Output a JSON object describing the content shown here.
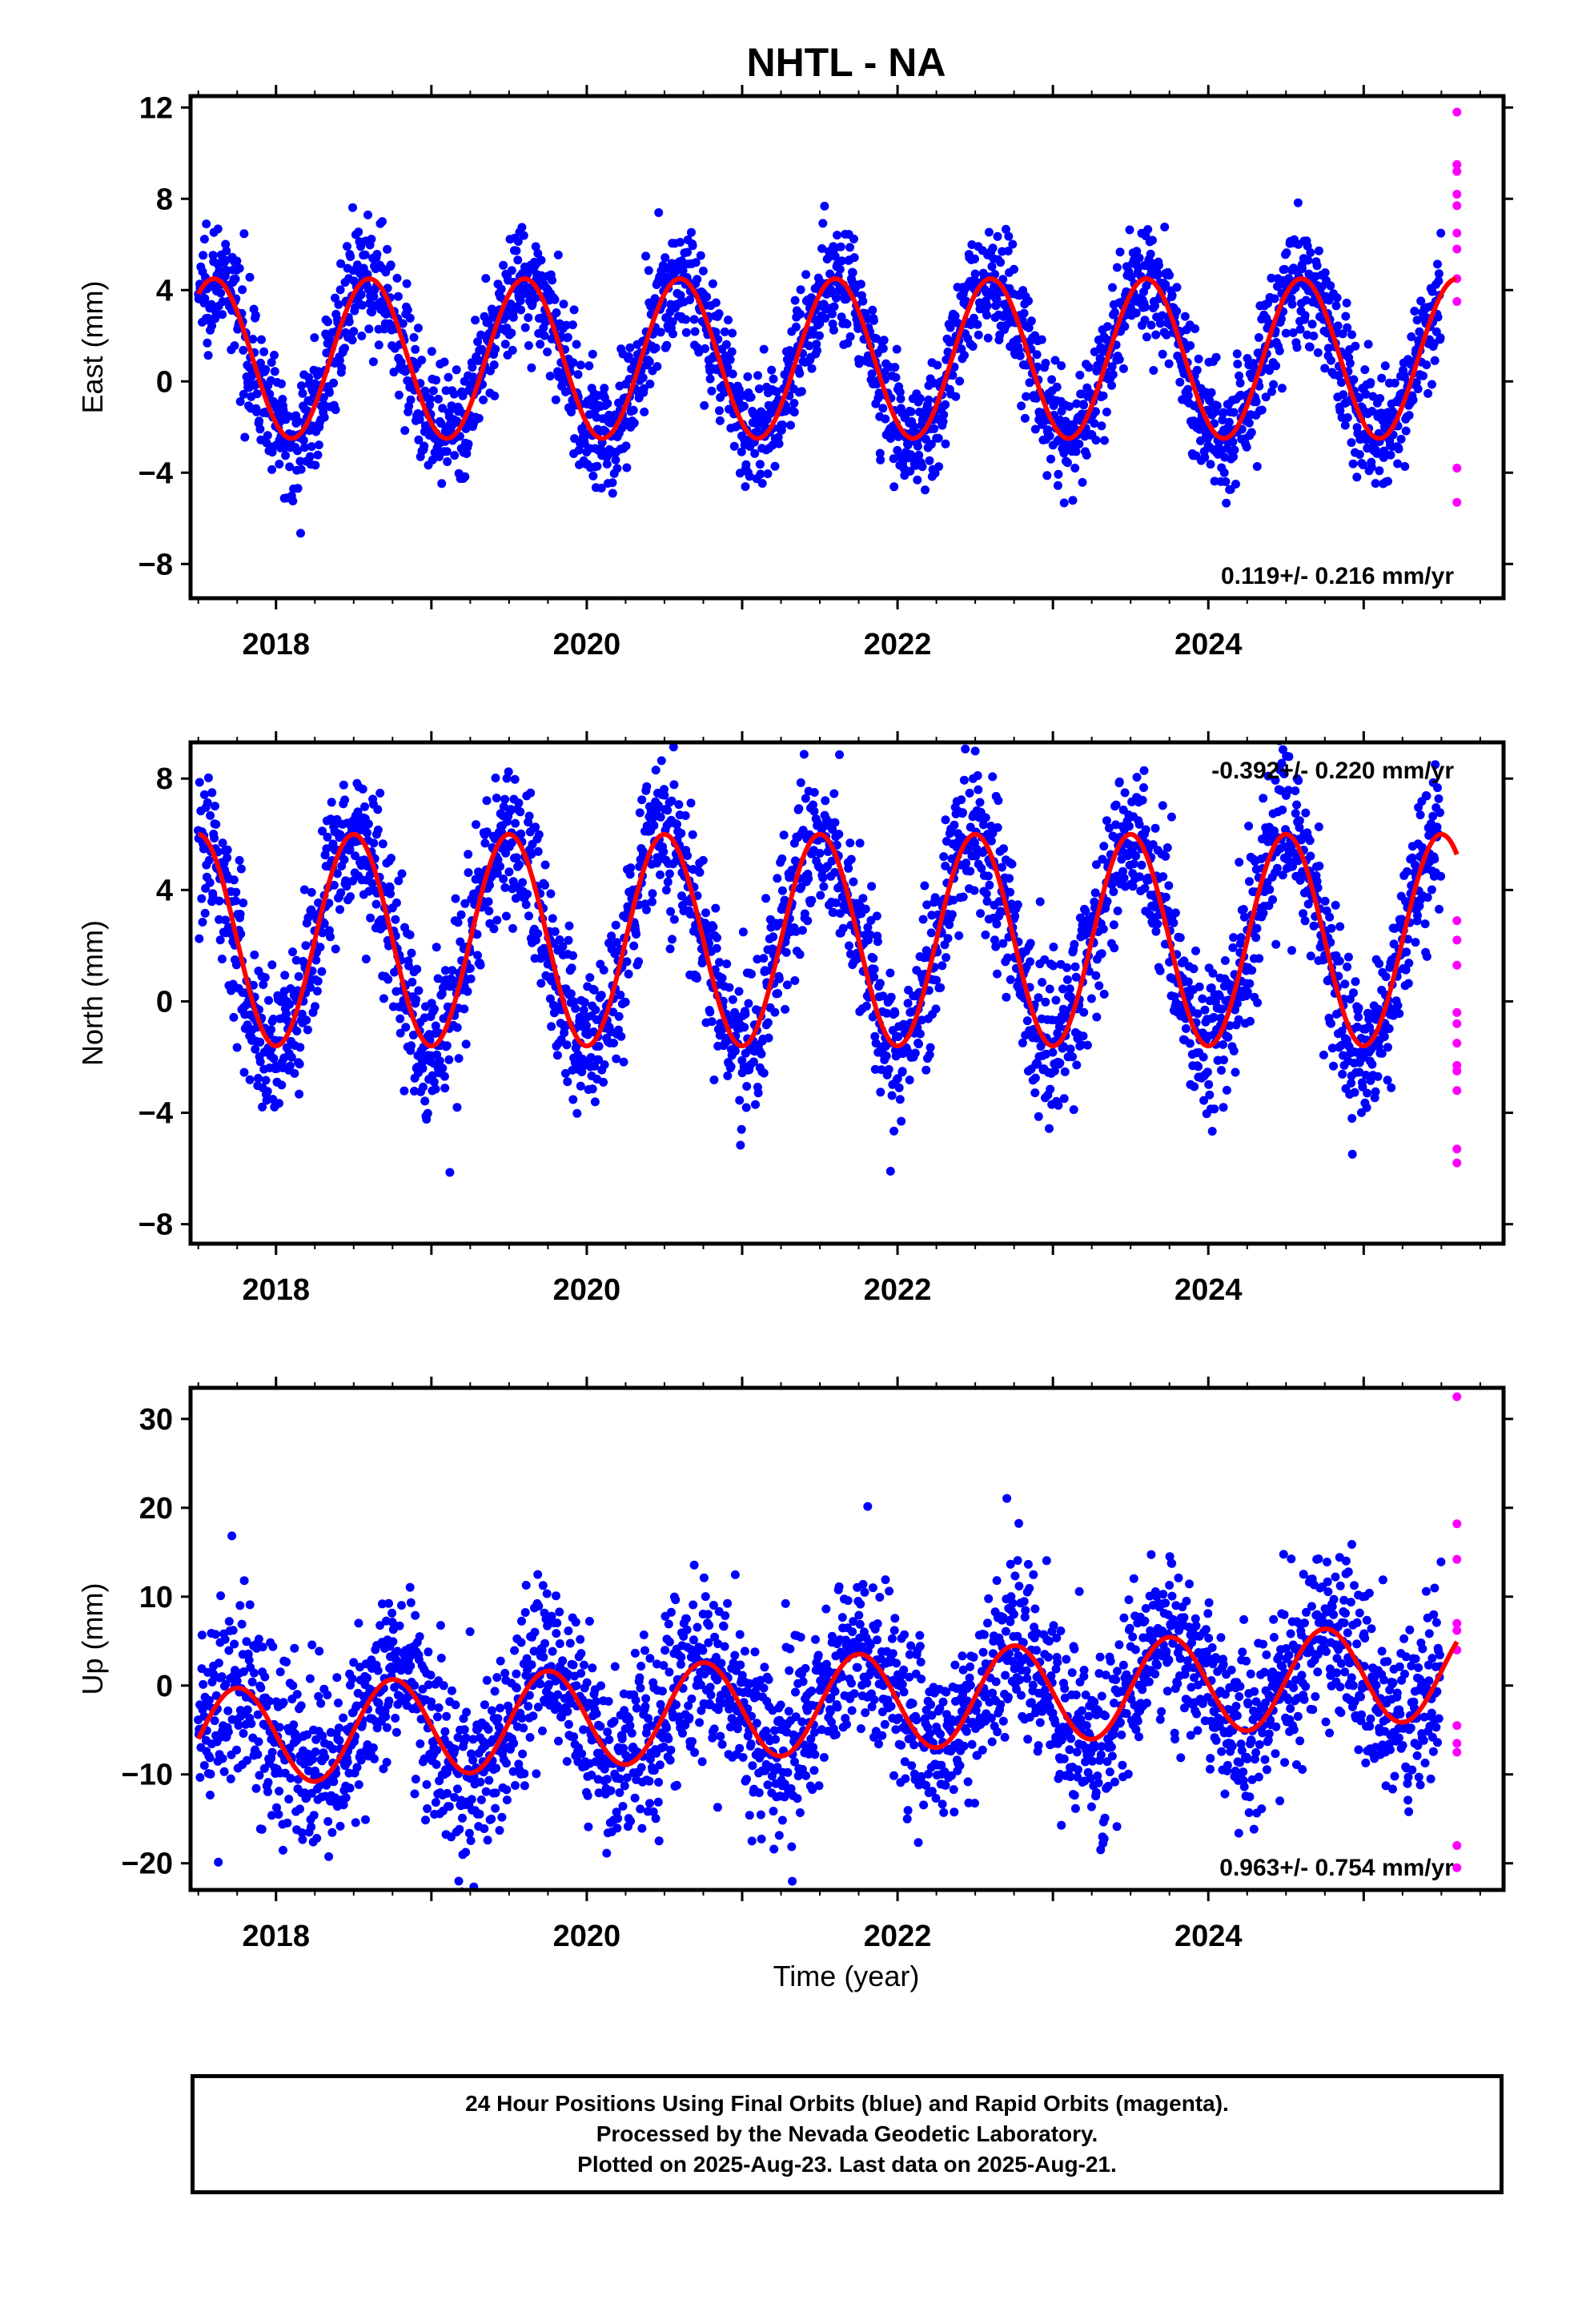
{
  "title": "NHTL - NA",
  "colors": {
    "final": "#0000ff",
    "rapid": "#ff00ff",
    "model": "#ff0000"
  },
  "xlabel": "Time (year)",
  "x_ticks": [
    "2018",
    "2020",
    "2022",
    "2024"
  ],
  "footer": {
    "line1": "24 Hour Positions Using Final Orbits (blue) and Rapid Orbits (magenta).",
    "line2": "Processed by the Nevada Geodetic Laboratory.",
    "line3": "Plotted on 2025-Aug-23. Last data on 2025-Aug-21."
  },
  "chart_data": [
    {
      "type": "scatter",
      "component": "east",
      "ylabel": "East (mm)",
      "xlim": [
        2017.45,
        2025.9
      ],
      "ylim": [
        -9.5,
        12.5
      ],
      "y_ticks": [
        "12",
        "8",
        "4",
        "0",
        "−4",
        "−8"
      ],
      "y_tick_values": [
        12,
        8,
        4,
        0,
        -4,
        -8
      ],
      "rate": "0.119+/- 0.216 mm/yr",
      "rate_placement": "bottom-right",
      "seasonal_model": {
        "name": "fit",
        "amplitude": 3.5,
        "peak_phase": 0.6,
        "offset": 1.0
      },
      "scatter_sigma": 1.3,
      "final_orbits": {
        "x_range": [
          2017.5,
          2025.5
        ],
        "approx_points": 2600
      },
      "rapid_orbits": {
        "x": 2025.6,
        "y": [
          11.8,
          9.5,
          9.2,
          8.2,
          7.7,
          6.5,
          5.8,
          4.5,
          3.5,
          -3.8,
          -5.3
        ]
      }
    },
    {
      "type": "scatter",
      "component": "north",
      "ylabel": "North (mm)",
      "xlim": [
        2017.45,
        2025.9
      ],
      "ylim": [
        -8.7,
        9.3
      ],
      "y_ticks": [
        "8",
        "4",
        "0",
        "−4",
        "−8"
      ],
      "y_tick_values": [
        8,
        4,
        0,
        -4,
        -8
      ],
      "rate": "-0.392+/- 0.220 mm/yr",
      "rate_placement": "top-right",
      "seasonal_model": {
        "name": "fit",
        "amplitude": 3.8,
        "peak_phase": 0.5,
        "offset": 2.2
      },
      "scatter_sigma": 1.4,
      "final_orbits": {
        "x_range": [
          2017.5,
          2025.5
        ],
        "approx_points": 2600
      },
      "rapid_orbits": {
        "x": 2025.6,
        "y": [
          2.9,
          2.2,
          1.3,
          -0.4,
          -0.8,
          -1.5,
          -2.3,
          -2.5,
          -3.2,
          -5.3,
          -5.8
        ]
      }
    },
    {
      "type": "scatter",
      "component": "up",
      "ylabel": "Up (mm)",
      "xlim": [
        2017.45,
        2025.9
      ],
      "ylim": [
        -23,
        33.5
      ],
      "y_ticks": [
        "30",
        "20",
        "10",
        "0",
        "−10",
        "−20"
      ],
      "y_tick_values": [
        30,
        20,
        10,
        0,
        -10,
        -20
      ],
      "rate": "0.963+/- 0.754 mm/yr",
      "rate_placement": "bottom-right",
      "seasonal_model": {
        "name": "fit",
        "amplitude": 5.5,
        "peak_phase": 0.75,
        "offset": -2.2,
        "trend": 0.95
      },
      "scatter_sigma": 5.0,
      "final_orbits": {
        "x_range": [
          2017.5,
          2025.5
        ],
        "approx_points": 2600
      },
      "rapid_orbits": {
        "x": 2025.6,
        "y": [
          32.5,
          18.2,
          14.2,
          7.0,
          6.2,
          4.0,
          -4.5,
          -6.5,
          -7.5,
          -18.0,
          -20.5
        ]
      }
    }
  ]
}
